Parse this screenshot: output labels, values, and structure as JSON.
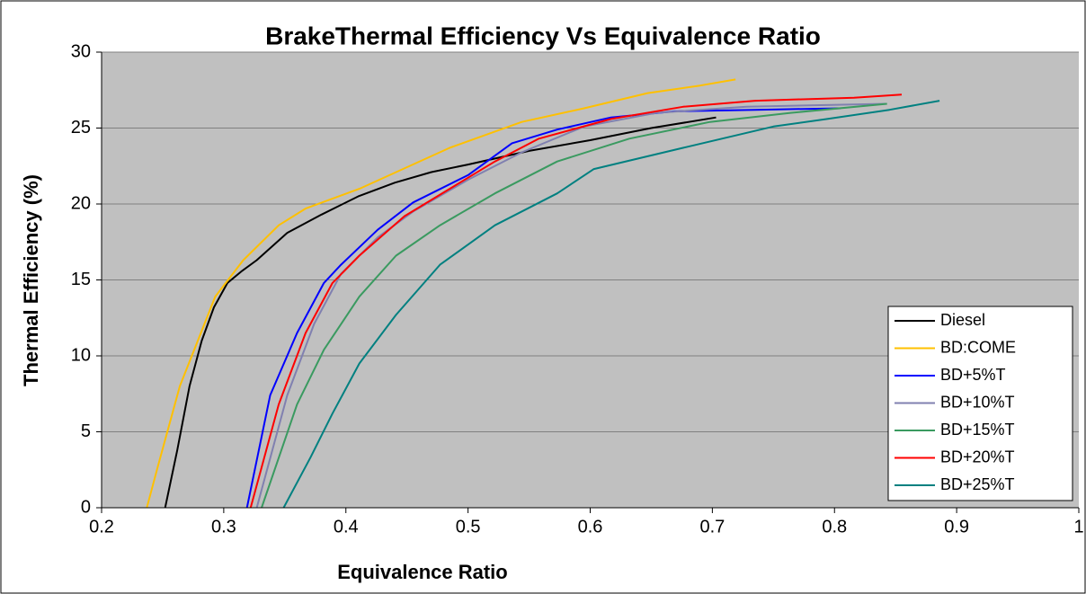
{
  "chart_data": {
    "type": "line",
    "title": "BrakeThermal Efficiency Vs Equivalence Ratio",
    "x_label": "Equivalence Ratio",
    "y_label": "Thermal Efficiency (%)",
    "xlim": [
      0.2,
      1
    ],
    "ylim": [
      0,
      30
    ],
    "xticks": [
      0.2,
      0.3,
      0.4,
      0.5,
      0.6,
      0.7,
      0.8,
      0.9,
      1
    ],
    "yticks": [
      0,
      5,
      10,
      15,
      20,
      25,
      30
    ],
    "grid": true,
    "legend": "lower right",
    "series": [
      {
        "name": "Diesel",
        "color": "#000000",
        "x": [
          0.252,
          0.262,
          0.272,
          0.282,
          0.292,
          0.303,
          0.315,
          0.327,
          0.352,
          0.38,
          0.41,
          0.44,
          0.47,
          0.5,
          0.55,
          0.6,
          0.65,
          0.703
        ],
        "values": [
          0,
          3.8,
          8,
          11,
          13.2,
          14.8,
          15.6,
          16.3,
          18.1,
          19.3,
          20.5,
          21.4,
          22.1,
          22.6,
          23.5,
          24.2,
          25,
          25.7
        ]
      },
      {
        "name": "BD:COME",
        "color": "#ffc000",
        "x": [
          0.237,
          0.246,
          0.264,
          0.293,
          0.316,
          0.345,
          0.367,
          0.411,
          0.485,
          0.544,
          0.595,
          0.647,
          0.69,
          0.719
        ],
        "values": [
          0,
          2.7,
          8,
          13.9,
          16.3,
          18.6,
          19.7,
          21,
          23.7,
          25.4,
          26.3,
          27.3,
          27.8,
          28.2
        ]
      },
      {
        "name": "BD+5%T",
        "color": "#0000ff",
        "x": [
          0.319,
          0.338,
          0.36,
          0.382,
          0.396,
          0.426,
          0.455,
          0.5,
          0.536,
          0.573,
          0.617,
          0.669,
          0.735,
          0.805
        ],
        "values": [
          0,
          7.4,
          11.5,
          14.8,
          16,
          18.3,
          20.1,
          21.9,
          24,
          24.9,
          25.7,
          26.1,
          26.2,
          26.3
        ]
      },
      {
        "name": "BD+10%T",
        "color": "#8080b0",
        "x": [
          0.327,
          0.352,
          0.374,
          0.396,
          0.426,
          0.455,
          0.5,
          0.544,
          0.595,
          0.654,
          0.728,
          0.842
        ],
        "values": [
          0,
          7.4,
          12.1,
          15.4,
          17.8,
          19.5,
          21.6,
          23.4,
          25.1,
          26,
          26.4,
          26.6
        ]
      },
      {
        "name": "BD+15%T",
        "color": "#3a9a60",
        "x": [
          0.331,
          0.36,
          0.382,
          0.411,
          0.441,
          0.477,
          0.522,
          0.573,
          0.632,
          0.698,
          0.764,
          0.843
        ],
        "values": [
          0,
          6.8,
          10.4,
          13.9,
          16.6,
          18.6,
          20.7,
          22.8,
          24.3,
          25.4,
          26,
          26.6
        ]
      },
      {
        "name": "BD+20%T",
        "color": "#ff0000",
        "x": [
          0.322,
          0.345,
          0.367,
          0.389,
          0.411,
          0.448,
          0.485,
          0.522,
          0.558,
          0.617,
          0.676,
          0.735,
          0.816,
          0.855
        ],
        "values": [
          0,
          6.8,
          11.5,
          14.8,
          16.6,
          19.2,
          21,
          22.8,
          24.3,
          25.6,
          26.4,
          26.8,
          27,
          27.2
        ]
      },
      {
        "name": "BD+25%T",
        "color": "#008080",
        "x": [
          0.349,
          0.371,
          0.389,
          0.411,
          0.441,
          0.477,
          0.522,
          0.573,
          0.603,
          0.676,
          0.75,
          0.794,
          0.845,
          0.886
        ],
        "values": [
          0,
          3.3,
          6.2,
          9.5,
          12.7,
          16,
          18.6,
          20.7,
          22.3,
          23.7,
          25.1,
          25.6,
          26.2,
          26.8
        ]
      }
    ]
  }
}
